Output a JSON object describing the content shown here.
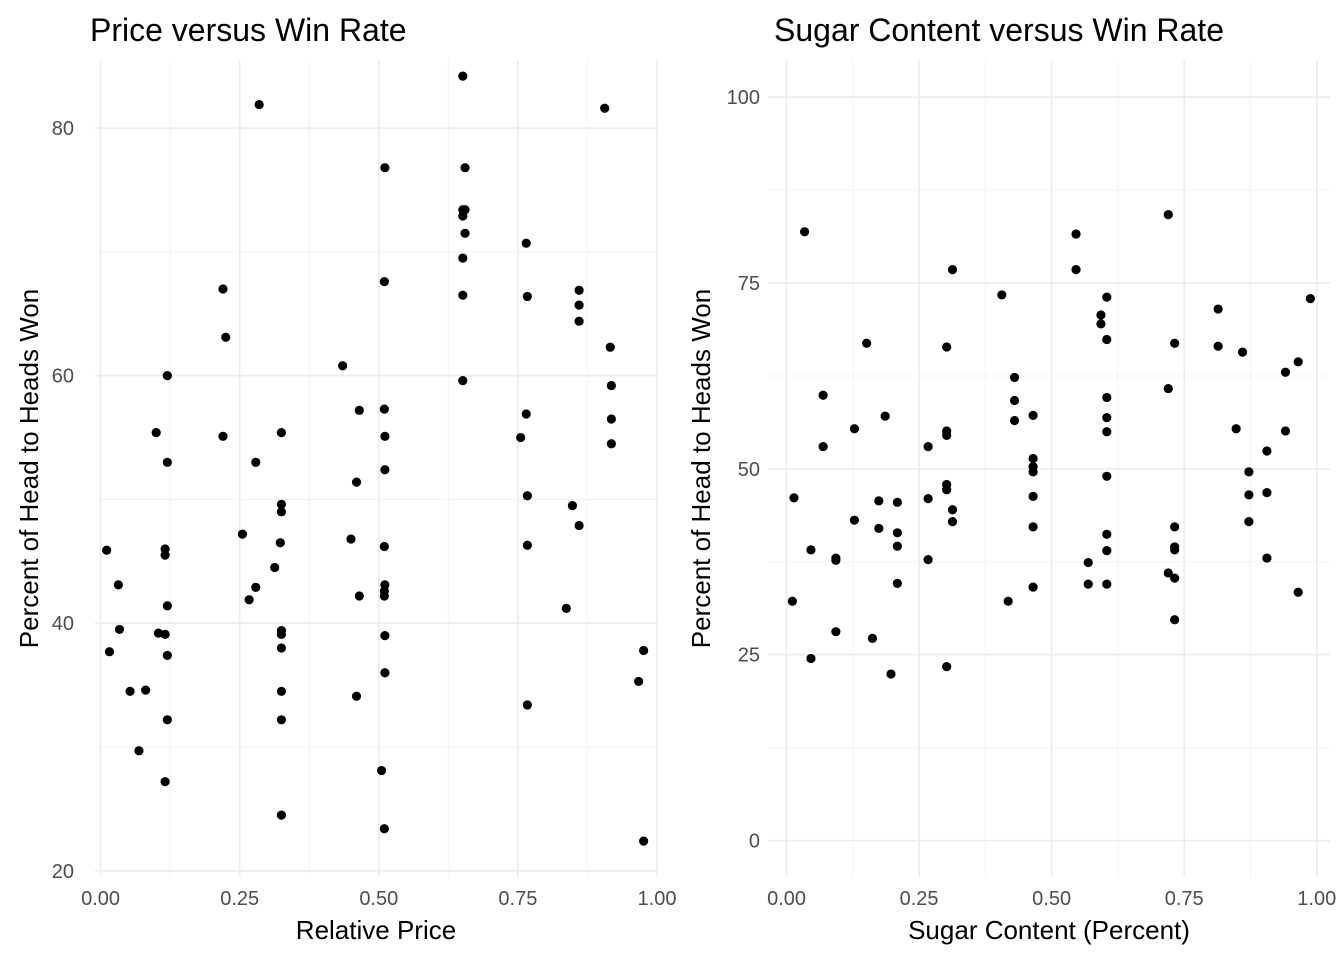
{
  "chart_data": [
    {
      "type": "scatter",
      "title": "Price versus Win Rate",
      "xlabel": "Relative Price",
      "ylabel": "Percent of Head to Heads Won",
      "xlim": [
        -0.01,
        1.0
      ],
      "ylim": [
        19.5,
        85.5
      ],
      "x_ticks": [
        0,
        0.25,
        0.5,
        0.75,
        1
      ],
      "x_tick_labels": [
        "0.00",
        "0.25",
        "0.50",
        "0.75",
        "1.00"
      ],
      "y_ticks": [
        20,
        40,
        60,
        80
      ],
      "y_tick_labels": [
        "20",
        "40",
        "60",
        "80"
      ],
      "grid": true,
      "legend": "none",
      "point_color": "#000000",
      "points": [
        [
          0.011,
          45.9
        ],
        [
          0.016,
          37.7
        ],
        [
          0.032,
          43.1
        ],
        [
          0.034,
          39.5
        ],
        [
          0.053,
          34.5
        ],
        [
          0.069,
          29.7
        ],
        [
          0.081,
          34.6
        ],
        [
          0.1,
          55.4
        ],
        [
          0.104,
          39.2
        ],
        [
          0.116,
          27.2
        ],
        [
          0.116,
          46.0
        ],
        [
          0.116,
          45.5
        ],
        [
          0.116,
          39.1
        ],
        [
          0.12,
          37.4
        ],
        [
          0.12,
          53.0
        ],
        [
          0.12,
          60.0
        ],
        [
          0.12,
          32.2
        ],
        [
          0.12,
          41.4
        ],
        [
          0.22,
          67.0
        ],
        [
          0.22,
          55.1
        ],
        [
          0.225,
          63.1
        ],
        [
          0.255,
          47.2
        ],
        [
          0.267,
          41.9
        ],
        [
          0.279,
          42.9
        ],
        [
          0.279,
          53.0
        ],
        [
          0.285,
          81.9
        ],
        [
          0.313,
          44.5
        ],
        [
          0.323,
          46.5
        ],
        [
          0.325,
          49.6
        ],
        [
          0.325,
          49.0
        ],
        [
          0.325,
          55.4
        ],
        [
          0.325,
          39.4
        ],
        [
          0.325,
          39.1
        ],
        [
          0.325,
          38.0
        ],
        [
          0.325,
          34.5
        ],
        [
          0.325,
          32.2
        ],
        [
          0.325,
          24.5
        ],
        [
          0.435,
          60.8
        ],
        [
          0.45,
          46.8
        ],
        [
          0.46,
          51.4
        ],
        [
          0.465,
          57.2
        ],
        [
          0.465,
          42.2
        ],
        [
          0.46,
          34.1
        ],
        [
          0.505,
          28.1
        ],
        [
          0.51,
          23.4
        ],
        [
          0.51,
          67.6
        ],
        [
          0.51,
          57.3
        ],
        [
          0.51,
          46.2
        ],
        [
          0.51,
          42.6
        ],
        [
          0.51,
          42.2
        ],
        [
          0.511,
          76.8
        ],
        [
          0.511,
          52.4
        ],
        [
          0.511,
          43.1
        ],
        [
          0.511,
          36.0
        ],
        [
          0.511,
          39.0
        ],
        [
          0.511,
          55.1
        ],
        [
          0.651,
          84.2
        ],
        [
          0.651,
          73.4
        ],
        [
          0.651,
          72.9
        ],
        [
          0.651,
          69.5
        ],
        [
          0.651,
          66.5
        ],
        [
          0.651,
          59.6
        ],
        [
          0.655,
          76.8
        ],
        [
          0.655,
          73.4
        ],
        [
          0.655,
          71.5
        ],
        [
          0.755,
          55.0
        ],
        [
          0.765,
          70.7
        ],
        [
          0.765,
          56.9
        ],
        [
          0.767,
          33.4
        ],
        [
          0.767,
          66.4
        ],
        [
          0.767,
          50.3
        ],
        [
          0.767,
          46.3
        ],
        [
          0.837,
          41.2
        ],
        [
          0.848,
          49.5
        ],
        [
          0.86,
          47.9
        ],
        [
          0.86,
          64.4
        ],
        [
          0.86,
          66.9
        ],
        [
          0.86,
          65.7
        ],
        [
          0.906,
          81.6
        ],
        [
          0.916,
          62.3
        ],
        [
          0.918,
          59.2
        ],
        [
          0.918,
          56.5
        ],
        [
          0.918,
          54.5
        ],
        [
          0.967,
          35.3
        ],
        [
          0.976,
          37.8
        ],
        [
          0.976,
          22.4
        ]
      ]
    },
    {
      "type": "scatter",
      "title": "Sugar Content versus Win Rate",
      "xlabel": "Sugar Content (Percent)",
      "ylabel": "Percent of Head to Heads Won",
      "xlim": [
        -0.035,
        1.025
      ],
      "ylim": [
        -4.9,
        105
      ],
      "x_ticks": [
        0,
        0.25,
        0.5,
        0.75,
        1
      ],
      "x_tick_labels": [
        "0.00",
        "0.25",
        "0.50",
        "0.75",
        "1.00"
      ],
      "y_ticks": [
        0,
        25,
        50,
        75,
        100
      ],
      "y_tick_labels": [
        "0",
        "25",
        "50",
        "75",
        "100"
      ],
      "grid": true,
      "legend": "none",
      "point_color": "#000000",
      "points": [
        [
          0.011,
          32.2
        ],
        [
          0.014,
          46.1
        ],
        [
          0.034,
          81.9
        ],
        [
          0.046,
          24.5
        ],
        [
          0.046,
          39.1
        ],
        [
          0.069,
          59.9
        ],
        [
          0.069,
          53.0
        ],
        [
          0.093,
          38.0
        ],
        [
          0.093,
          28.1
        ],
        [
          0.093,
          37.7
        ],
        [
          0.128,
          55.4
        ],
        [
          0.128,
          43.1
        ],
        [
          0.151,
          66.9
        ],
        [
          0.162,
          27.2
        ],
        [
          0.174,
          45.7
        ],
        [
          0.174,
          42.0
        ],
        [
          0.186,
          57.1
        ],
        [
          0.197,
          22.4
        ],
        [
          0.209,
          45.5
        ],
        [
          0.209,
          41.4
        ],
        [
          0.209,
          39.6
        ],
        [
          0.209,
          34.6
        ],
        [
          0.267,
          53.0
        ],
        [
          0.267,
          46.0
        ],
        [
          0.267,
          37.8
        ],
        [
          0.302,
          23.4
        ],
        [
          0.302,
          55.1
        ],
        [
          0.302,
          54.5
        ],
        [
          0.302,
          66.4
        ],
        [
          0.302,
          47.2
        ],
        [
          0.302,
          47.9
        ],
        [
          0.313,
          76.8
        ],
        [
          0.313,
          44.5
        ],
        [
          0.313,
          42.9
        ],
        [
          0.406,
          73.4
        ],
        [
          0.418,
          32.2
        ],
        [
          0.43,
          62.3
        ],
        [
          0.43,
          59.2
        ],
        [
          0.43,
          56.5
        ],
        [
          0.465,
          57.2
        ],
        [
          0.465,
          51.4
        ],
        [
          0.465,
          50.3
        ],
        [
          0.465,
          49.6
        ],
        [
          0.465,
          46.3
        ],
        [
          0.465,
          42.2
        ],
        [
          0.465,
          34.1
        ],
        [
          0.546,
          81.6
        ],
        [
          0.546,
          76.8
        ],
        [
          0.569,
          34.5
        ],
        [
          0.569,
          37.4
        ],
        [
          0.593,
          70.7
        ],
        [
          0.593,
          69.5
        ],
        [
          0.604,
          73.1
        ],
        [
          0.604,
          67.4
        ],
        [
          0.604,
          59.6
        ],
        [
          0.604,
          56.9
        ],
        [
          0.604,
          55.0
        ],
        [
          0.604,
          49.0
        ],
        [
          0.604,
          41.2
        ],
        [
          0.604,
          39.0
        ],
        [
          0.604,
          34.5
        ],
        [
          0.72,
          84.2
        ],
        [
          0.72,
          60.8
        ],
        [
          0.72,
          36.0
        ],
        [
          0.732,
          66.9
        ],
        [
          0.732,
          42.2
        ],
        [
          0.732,
          39.5
        ],
        [
          0.732,
          39.1
        ],
        [
          0.732,
          35.3
        ],
        [
          0.732,
          29.7
        ],
        [
          0.814,
          66.5
        ],
        [
          0.814,
          71.5
        ],
        [
          0.848,
          55.4
        ],
        [
          0.86,
          65.7
        ],
        [
          0.872,
          49.6
        ],
        [
          0.872,
          46.5
        ],
        [
          0.872,
          42.9
        ],
        [
          0.906,
          52.4
        ],
        [
          0.906,
          46.8
        ],
        [
          0.906,
          38.0
        ],
        [
          0.941,
          63.0
        ],
        [
          0.941,
          55.1
        ],
        [
          0.965,
          64.4
        ],
        [
          0.965,
          33.4
        ],
        [
          0.988,
          72.9
        ]
      ]
    }
  ]
}
